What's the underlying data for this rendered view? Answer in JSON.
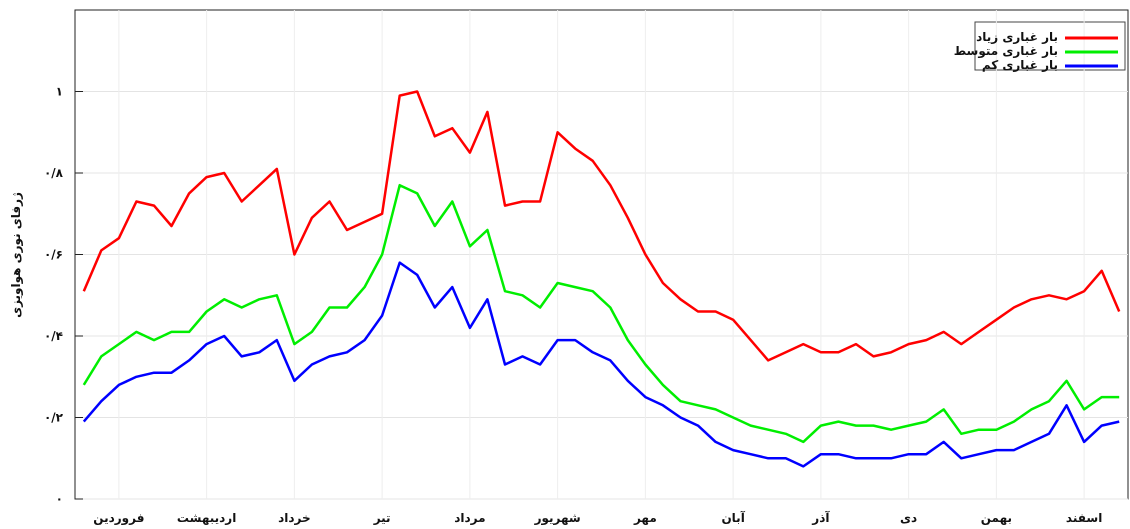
{
  "chart_data": {
    "type": "line",
    "y_label": "ژرفای نوری هواویزی",
    "categories": [
      null,
      null,
      "فروردین",
      null,
      null,
      null,
      null,
      "اردیبهشت",
      null,
      null,
      null,
      null,
      "خرداد",
      null,
      null,
      null,
      null,
      "تیر",
      null,
      null,
      null,
      null,
      "مرداد",
      null,
      null,
      null,
      null,
      "شهریور",
      null,
      null,
      null,
      null,
      "مهر",
      null,
      null,
      null,
      null,
      "آبان",
      null,
      null,
      null,
      null,
      "آذر",
      null,
      null,
      null,
      null,
      "دی",
      null,
      null,
      null,
      null,
      "بهمن",
      null,
      null,
      null,
      null,
      "اسفند",
      null,
      null
    ],
    "series": [
      {
        "name": "بار غباری زیاد",
        "color": "#ff0000",
        "values": [
          0.51,
          0.61,
          0.64,
          0.73,
          0.72,
          0.67,
          0.75,
          0.79,
          0.8,
          0.73,
          0.77,
          0.81,
          0.6,
          0.69,
          0.73,
          0.66,
          0.68,
          0.7,
          0.99,
          1.0,
          0.89,
          0.91,
          0.85,
          0.95,
          0.72,
          0.73,
          0.73,
          0.9,
          0.86,
          0.83,
          0.77,
          0.69,
          0.6,
          0.53,
          0.49,
          0.46,
          0.46,
          0.44,
          0.39,
          0.34,
          0.36,
          0.38,
          0.36,
          0.36,
          0.38,
          0.35,
          0.36,
          0.38,
          0.39,
          0.41,
          0.38,
          0.41,
          0.44,
          0.47,
          0.49,
          0.5,
          0.49,
          0.51,
          0.56,
          0.46
        ]
      },
      {
        "name": "بار غباری متوسط",
        "color": "#00ee00",
        "values": [
          0.28,
          0.35,
          0.38,
          0.41,
          0.39,
          0.41,
          0.41,
          0.46,
          0.49,
          0.47,
          0.49,
          0.5,
          0.38,
          0.41,
          0.47,
          0.47,
          0.52,
          0.6,
          0.77,
          0.75,
          0.67,
          0.73,
          0.62,
          0.66,
          0.51,
          0.5,
          0.47,
          0.53,
          0.52,
          0.51,
          0.47,
          0.39,
          0.33,
          0.28,
          0.24,
          0.23,
          0.22,
          0.2,
          0.18,
          0.17,
          0.16,
          0.14,
          0.18,
          0.19,
          0.18,
          0.18,
          0.17,
          0.18,
          0.19,
          0.22,
          0.16,
          0.17,
          0.17,
          0.19,
          0.22,
          0.24,
          0.29,
          0.22,
          0.25,
          0.25
        ]
      },
      {
        "name": "بار غباری کم",
        "color": "#0000ff",
        "values": [
          0.19,
          0.24,
          0.28,
          0.3,
          0.31,
          0.31,
          0.34,
          0.38,
          0.4,
          0.35,
          0.36,
          0.39,
          0.29,
          0.33,
          0.35,
          0.36,
          0.39,
          0.45,
          0.58,
          0.55,
          0.47,
          0.52,
          0.42,
          0.49,
          0.33,
          0.35,
          0.33,
          0.39,
          0.39,
          0.36,
          0.34,
          0.29,
          0.25,
          0.23,
          0.2,
          0.18,
          0.14,
          0.12,
          0.11,
          0.1,
          0.1,
          0.08,
          0.11,
          0.11,
          0.1,
          0.1,
          0.1,
          0.11,
          0.11,
          0.14,
          0.1,
          0.11,
          0.12,
          0.12,
          0.14,
          0.16,
          0.23,
          0.14,
          0.18,
          0.19
        ]
      }
    ],
    "ylim": [
      0,
      1.2
    ],
    "yticks": [
      {
        "value": 0,
        "label": "۰"
      },
      {
        "value": 0.2,
        "label": "۰/۲"
      },
      {
        "value": 0.4,
        "label": "۰/۴"
      },
      {
        "value": 0.6,
        "label": "۰/۶"
      },
      {
        "value": 0.8,
        "label": "۰/۸"
      },
      {
        "value": 1,
        "label": "۱"
      }
    ],
    "grid": true,
    "legend": "top-right"
  }
}
